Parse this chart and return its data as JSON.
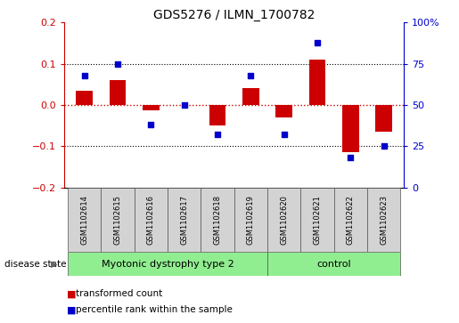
{
  "title": "GDS5276 / ILMN_1700782",
  "samples": [
    "GSM1102614",
    "GSM1102615",
    "GSM1102616",
    "GSM1102617",
    "GSM1102618",
    "GSM1102619",
    "GSM1102620",
    "GSM1102621",
    "GSM1102622",
    "GSM1102623"
  ],
  "red_values": [
    0.035,
    0.06,
    -0.012,
    0.0,
    -0.05,
    0.042,
    -0.03,
    0.11,
    -0.115,
    -0.065
  ],
  "blue_values": [
    68,
    75,
    38,
    50,
    32,
    68,
    32,
    88,
    18,
    25
  ],
  "group1_label": "Myotonic dystrophy type 2",
  "group2_label": "control",
  "group1_indices": [
    0,
    1,
    2,
    3,
    4,
    5
  ],
  "group2_indices": [
    6,
    7,
    8,
    9
  ],
  "disease_state_label": "disease state",
  "legend_red": "transformed count",
  "legend_blue": "percentile rank within the sample",
  "left_color": "#cc0000",
  "right_color": "#0000cc",
  "group_color": "#90ee90",
  "sample_box_color": "#d3d3d3",
  "ylim_left": [
    -0.2,
    0.2
  ],
  "ylim_right": [
    0,
    100
  ],
  "yticks_left": [
    -0.2,
    -0.1,
    0.0,
    0.1,
    0.2
  ],
  "yticks_right": [
    0,
    25,
    50,
    75,
    100
  ],
  "hlines": [
    0.1,
    0.0,
    -0.1
  ],
  "bar_width": 0.5
}
